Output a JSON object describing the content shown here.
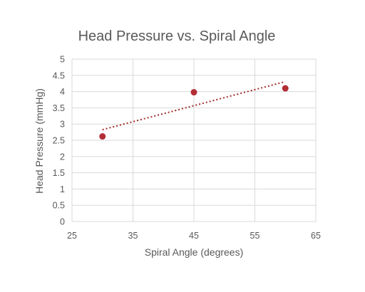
{
  "chart_data": {
    "type": "scatter",
    "title": "Head Pressure vs. Spiral Angle",
    "xlabel": "Spiral Angle (degrees)",
    "ylabel": "Head Pressure (mmHg)",
    "xlim": [
      25,
      65
    ],
    "ylim": [
      0,
      5
    ],
    "x_ticks": [
      "25",
      "35",
      "45",
      "55",
      "65"
    ],
    "y_ticks": [
      "0",
      "0.5",
      "1",
      "1.5",
      "2",
      "2.5",
      "3",
      "3.5",
      "4",
      "4.5",
      "5"
    ],
    "grid": true,
    "series": [
      {
        "points": [
          {
            "x": 30,
            "y": 2.62
          },
          {
            "x": 45,
            "y": 3.98
          },
          {
            "x": 60,
            "y": 4.1
          }
        ],
        "color": "#b22e35",
        "trendline": {
          "type": "linear",
          "style": "dotted",
          "color": "#a52a2a"
        }
      }
    ]
  }
}
